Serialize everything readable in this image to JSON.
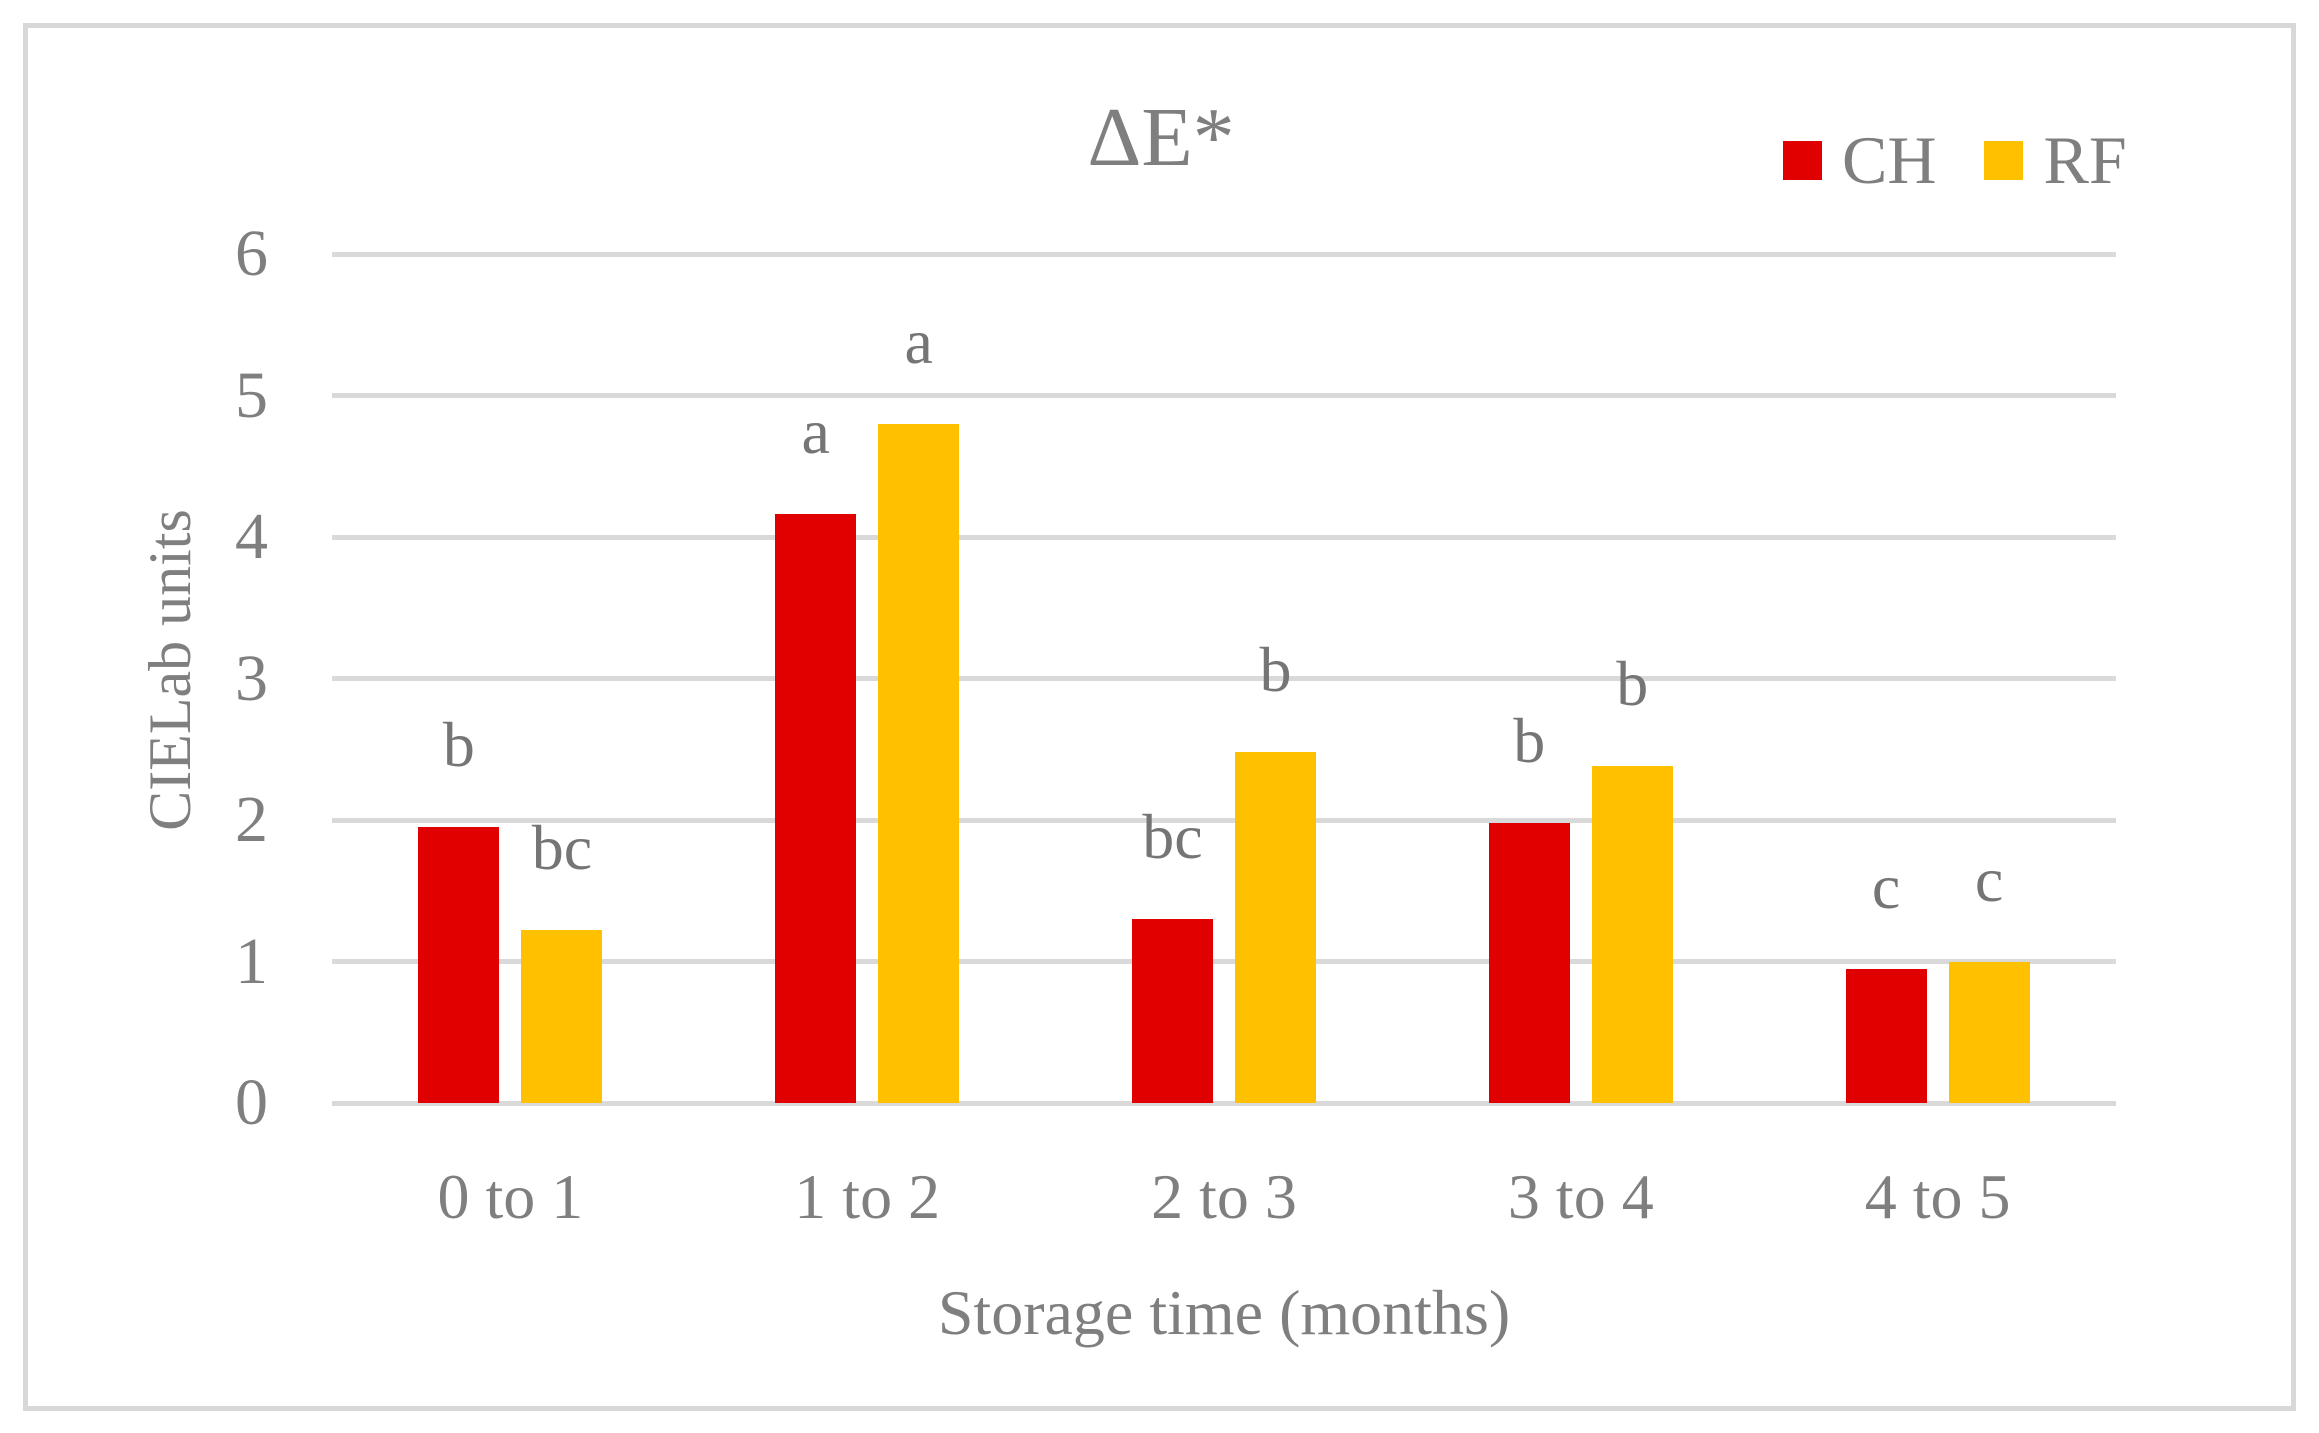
{
  "chart_data": {
    "type": "bar",
    "title": "ΔE*",
    "xlabel": "Storage time (months)",
    "ylabel": "CIELab units",
    "ylim": [
      0,
      6
    ],
    "y_ticks": [
      0,
      1,
      2,
      3,
      4,
      5,
      6
    ],
    "grid": true,
    "legend_position": "top-right",
    "categories": [
      "0 to 1",
      "1 to 2",
      "2 to 3",
      "3 to 4",
      "4 to 5"
    ],
    "series": [
      {
        "name": "CH",
        "color": "#e00000",
        "values": [
          1.95,
          4.16,
          1.3,
          1.98,
          0.95
        ],
        "sig_letters": [
          "b",
          "a",
          "bc",
          "b",
          "c"
        ]
      },
      {
        "name": "RF",
        "color": "#ffc000",
        "values": [
          1.22,
          4.8,
          2.48,
          2.38,
          1.0
        ],
        "sig_letters": [
          "bc",
          "a",
          "b",
          "b",
          "c"
        ]
      }
    ]
  },
  "colors": {
    "text": "#7f7f7f",
    "gridline": "#d9d9d9",
    "border": "#d8d8d8",
    "background": "#ffffff"
  }
}
